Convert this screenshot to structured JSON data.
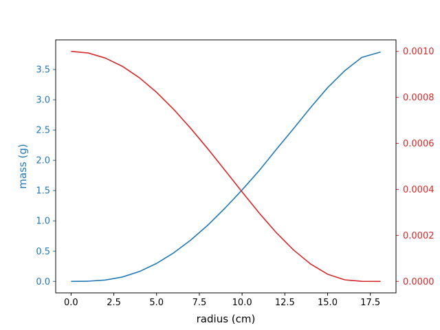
{
  "chart_data": {
    "type": "line",
    "xlabel": "radius (cm)",
    "ylabel_left": "mass (g)",
    "ylabel_right": "",
    "xlim": [
      -0.9,
      19.0
    ],
    "ylim_left": [
      -0.19,
      3.99
    ],
    "ylim_right": [
      -5e-05,
      0.00105
    ],
    "grid": false,
    "colors": {
      "left": "#1f77b4",
      "right": "#d62728",
      "axis": "#000000"
    },
    "x_ticks": [
      "0.0",
      "2.5",
      "5.0",
      "7.5",
      "10.0",
      "12.5",
      "15.0",
      "17.5"
    ],
    "y_left_ticks": [
      "0.0",
      "0.5",
      "1.0",
      "1.5",
      "2.0",
      "2.5",
      "3.0",
      "3.5"
    ],
    "y_right_ticks": [
      "0.0000",
      "0.0002",
      "0.0004",
      "0.0006",
      "0.0008",
      "0.0010"
    ],
    "series": [
      {
        "axis": "left",
        "color": "#1f77b4",
        "x": [
          0.0,
          1.0,
          2.0,
          3.0,
          4.0,
          5.0,
          6.0,
          7.0,
          8.0,
          9.0,
          10.0,
          11.0,
          12.0,
          13.0,
          14.0,
          15.0,
          16.0,
          17.0,
          18.1
        ],
        "y": [
          0.0,
          0.003,
          0.022,
          0.072,
          0.163,
          0.297,
          0.471,
          0.683,
          0.93,
          1.21,
          1.51,
          1.83,
          2.18,
          2.52,
          2.87,
          3.2,
          3.48,
          3.7,
          3.79
        ]
      },
      {
        "axis": "right",
        "color": "#d62728",
        "x": [
          0.0,
          1.0,
          2.0,
          3.0,
          4.0,
          5.0,
          6.0,
          7.0,
          8.0,
          9.0,
          10.0,
          11.0,
          12.0,
          13.0,
          14.0,
          15.0,
          16.0,
          17.0,
          18.1
        ],
        "y": [
          0.001,
          0.000993,
          0.000971,
          0.000935,
          0.000885,
          0.000822,
          0.000748,
          0.000665,
          0.000576,
          0.000483,
          0.000389,
          0.000297,
          0.000212,
          0.000137,
          7.59e-05,
          3.11e-05,
          6.8e-06,
          2e-07,
          0.0
        ]
      }
    ]
  }
}
